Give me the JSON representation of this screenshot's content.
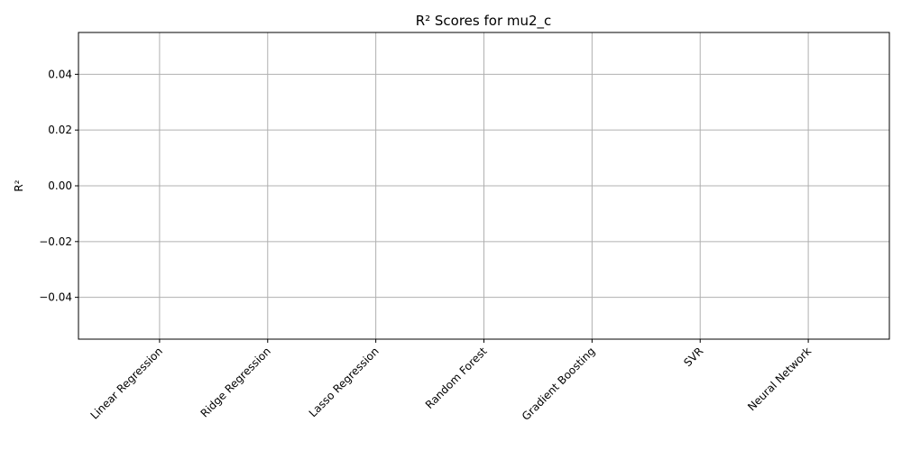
{
  "chart_data": {
    "type": "bar",
    "title": "R² Scores for mu2_c",
    "xlabel": "",
    "ylabel": "R²",
    "categories": [
      "Linear Regression",
      "Ridge Regression",
      "Lasso Regression",
      "Random Forest",
      "Gradient Boosting",
      "SVR",
      "Neural Network"
    ],
    "values": [
      null,
      null,
      null,
      null,
      null,
      null,
      null
    ],
    "ylim": [
      -0.055,
      0.055
    ],
    "yticks": [
      -0.04,
      -0.02,
      0.0,
      0.02,
      0.04
    ],
    "ytick_labels": [
      "−0.04",
      "−0.02",
      "0.00",
      "0.02",
      "0.04"
    ],
    "grid": true,
    "grid_color": "#b0b0b0",
    "bar_color": "#1f77b4",
    "xtick_rotation_deg": 45
  }
}
